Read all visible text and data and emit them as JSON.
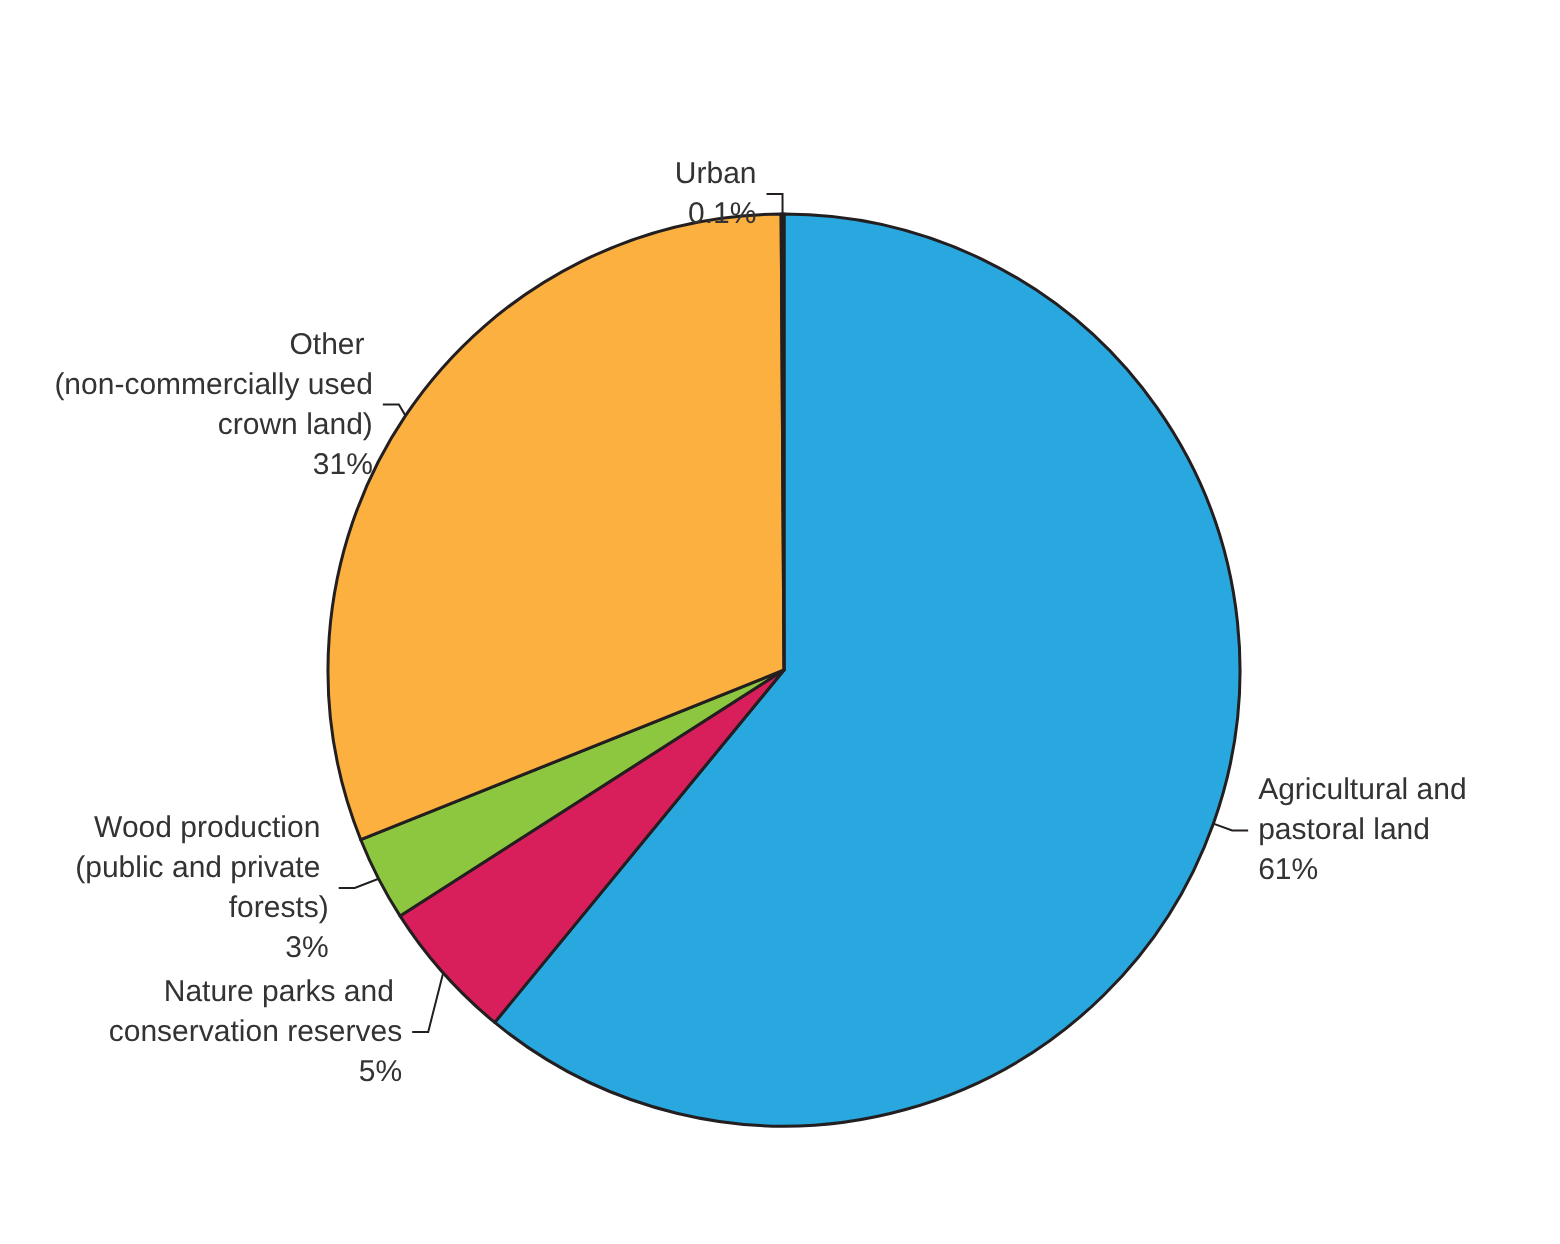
{
  "chart_data": {
    "type": "pie",
    "categories": [
      "Agricultural and pastoral land",
      "Nature parks and conservation reserves",
      "Wood production (public and private forests)",
      "Other (non-commercially used crown land)",
      "Urban"
    ],
    "values": [
      61,
      5,
      3,
      31,
      0.1
    ],
    "colors": [
      "#29a8e0",
      "#d81e5b",
      "#8dc63f",
      "#fbb040",
      "#9e9e9e"
    ],
    "value_labels": [
      "61%",
      "5%",
      "3%",
      "31%",
      "0.1%"
    ],
    "legend": false
  }
}
